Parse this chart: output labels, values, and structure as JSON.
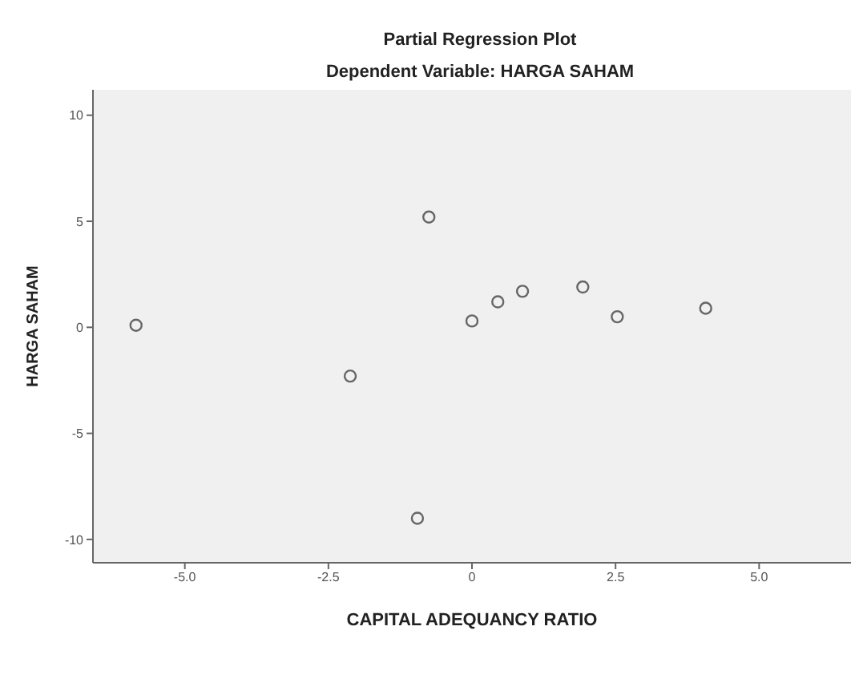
{
  "chart_data": {
    "type": "scatter",
    "title": "Partial Regression Plot",
    "subtitle": "Dependent Variable: HARGA SAHAM",
    "xlabel": "CAPITAL ADEQUANCY RATIO",
    "ylabel": "HARGA SAHAM",
    "x": [
      -5.85,
      -2.12,
      -0.75,
      -0.95,
      0.0,
      0.45,
      0.88,
      1.93,
      2.53,
      4.07
    ],
    "series": [
      {
        "color": "#666666",
        "values": [
          0.1,
          -2.3,
          5.2,
          -9.0,
          0.3,
          1.2,
          1.7,
          1.9,
          0.5,
          0.9
        ]
      }
    ],
    "xlim": [
      -6.6,
      6.6
    ],
    "xticks": [
      {
        "value": -5,
        "label": "-5.0"
      },
      {
        "value": -2.5,
        "label": "-2.5"
      },
      0,
      2.5,
      {
        "value": 5,
        "label": "5.0"
      }
    ],
    "ylim": [
      -11.1,
      11.2
    ],
    "yticks": [
      10,
      5,
      0,
      -5,
      -10
    ],
    "grid": false,
    "marker": "circle"
  }
}
